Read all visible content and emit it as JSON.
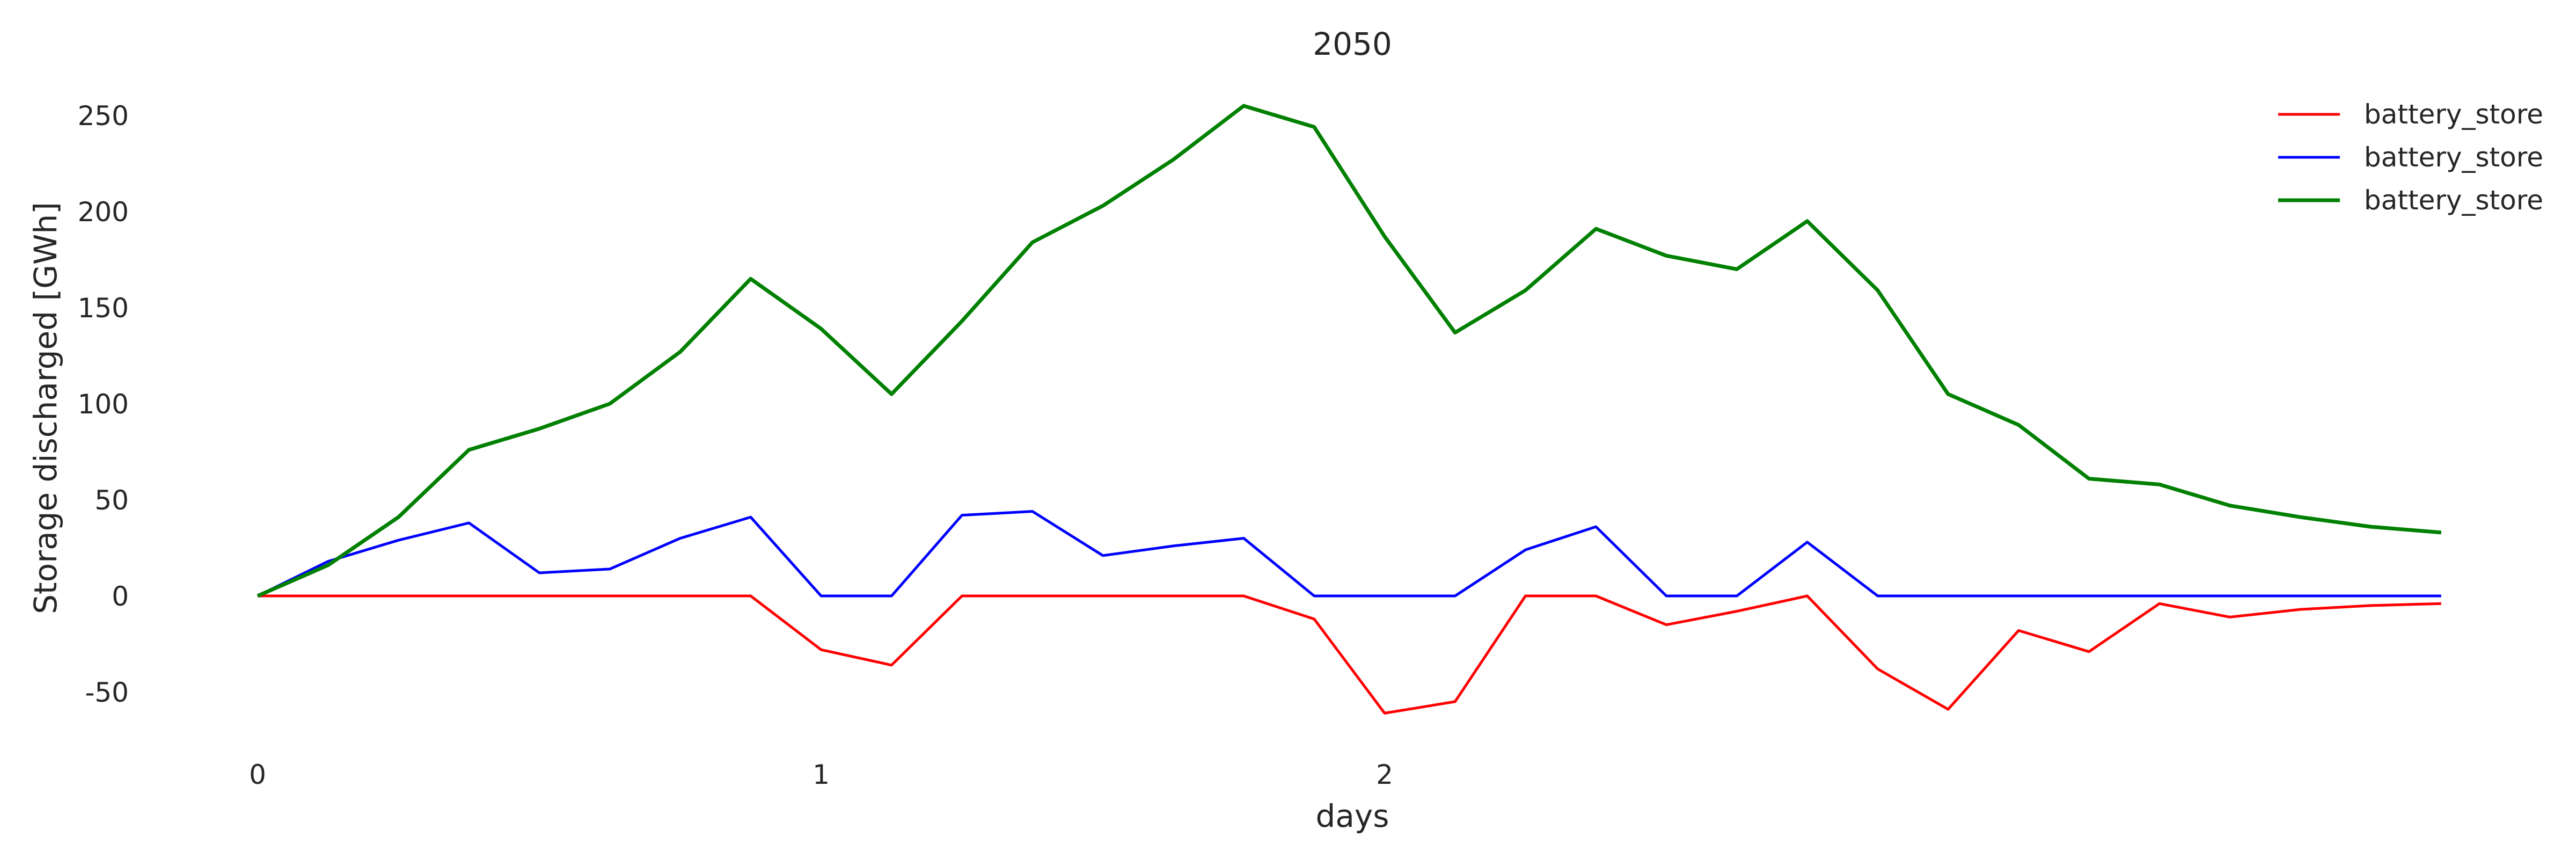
{
  "chart_data": {
    "type": "line",
    "title": "2050",
    "xlabel": "days",
    "ylabel": "Storage discharged [GWh]",
    "xlim": [
      0,
      3.9
    ],
    "ylim": [
      -70,
      275
    ],
    "x_ticks": [
      0,
      1,
      2
    ],
    "y_ticks": [
      -50,
      0,
      50,
      100,
      150,
      200,
      250
    ],
    "grid": false,
    "legend_position": "top-right",
    "x": [
      0,
      0.125,
      0.25,
      0.375,
      0.5,
      0.625,
      0.75,
      0.875,
      1.0,
      1.125,
      1.25,
      1.375,
      1.5,
      1.625,
      1.75,
      1.875,
      2.0,
      2.125,
      2.25,
      2.375,
      2.5,
      2.625,
      2.75,
      2.875,
      3.0,
      3.125,
      3.25,
      3.375,
      3.5,
      3.625,
      3.75,
      3.875
    ],
    "series": [
      {
        "name": "battery_store",
        "color": "#ff0000",
        "values": [
          0,
          0,
          0,
          0,
          0,
          0,
          0,
          0,
          -28,
          -36,
          0,
          0,
          0,
          0,
          0,
          -12,
          -61,
          -55,
          0,
          0,
          -15,
          -8,
          0,
          -38,
          -59,
          -18,
          -29,
          -4,
          -11,
          -7,
          -5,
          -4
        ]
      },
      {
        "name": "battery_store",
        "color": "#0000ff",
        "values": [
          0,
          18,
          29,
          38,
          12,
          14,
          30,
          41,
          0,
          0,
          42,
          44,
          21,
          26,
          30,
          0,
          0,
          0,
          24,
          36,
          0,
          0,
          28,
          0,
          0,
          0,
          0,
          0,
          0,
          0,
          0,
          0
        ]
      },
      {
        "name": "battery_store",
        "color": "#008000",
        "values": [
          0,
          16,
          41,
          76,
          87,
          100,
          127,
          165,
          139,
          105,
          143,
          184,
          203,
          227,
          255,
          244,
          187,
          137,
          159,
          191,
          177,
          170,
          195,
          159,
          105,
          89,
          61,
          58,
          47,
          41,
          36,
          33
        ]
      }
    ]
  }
}
